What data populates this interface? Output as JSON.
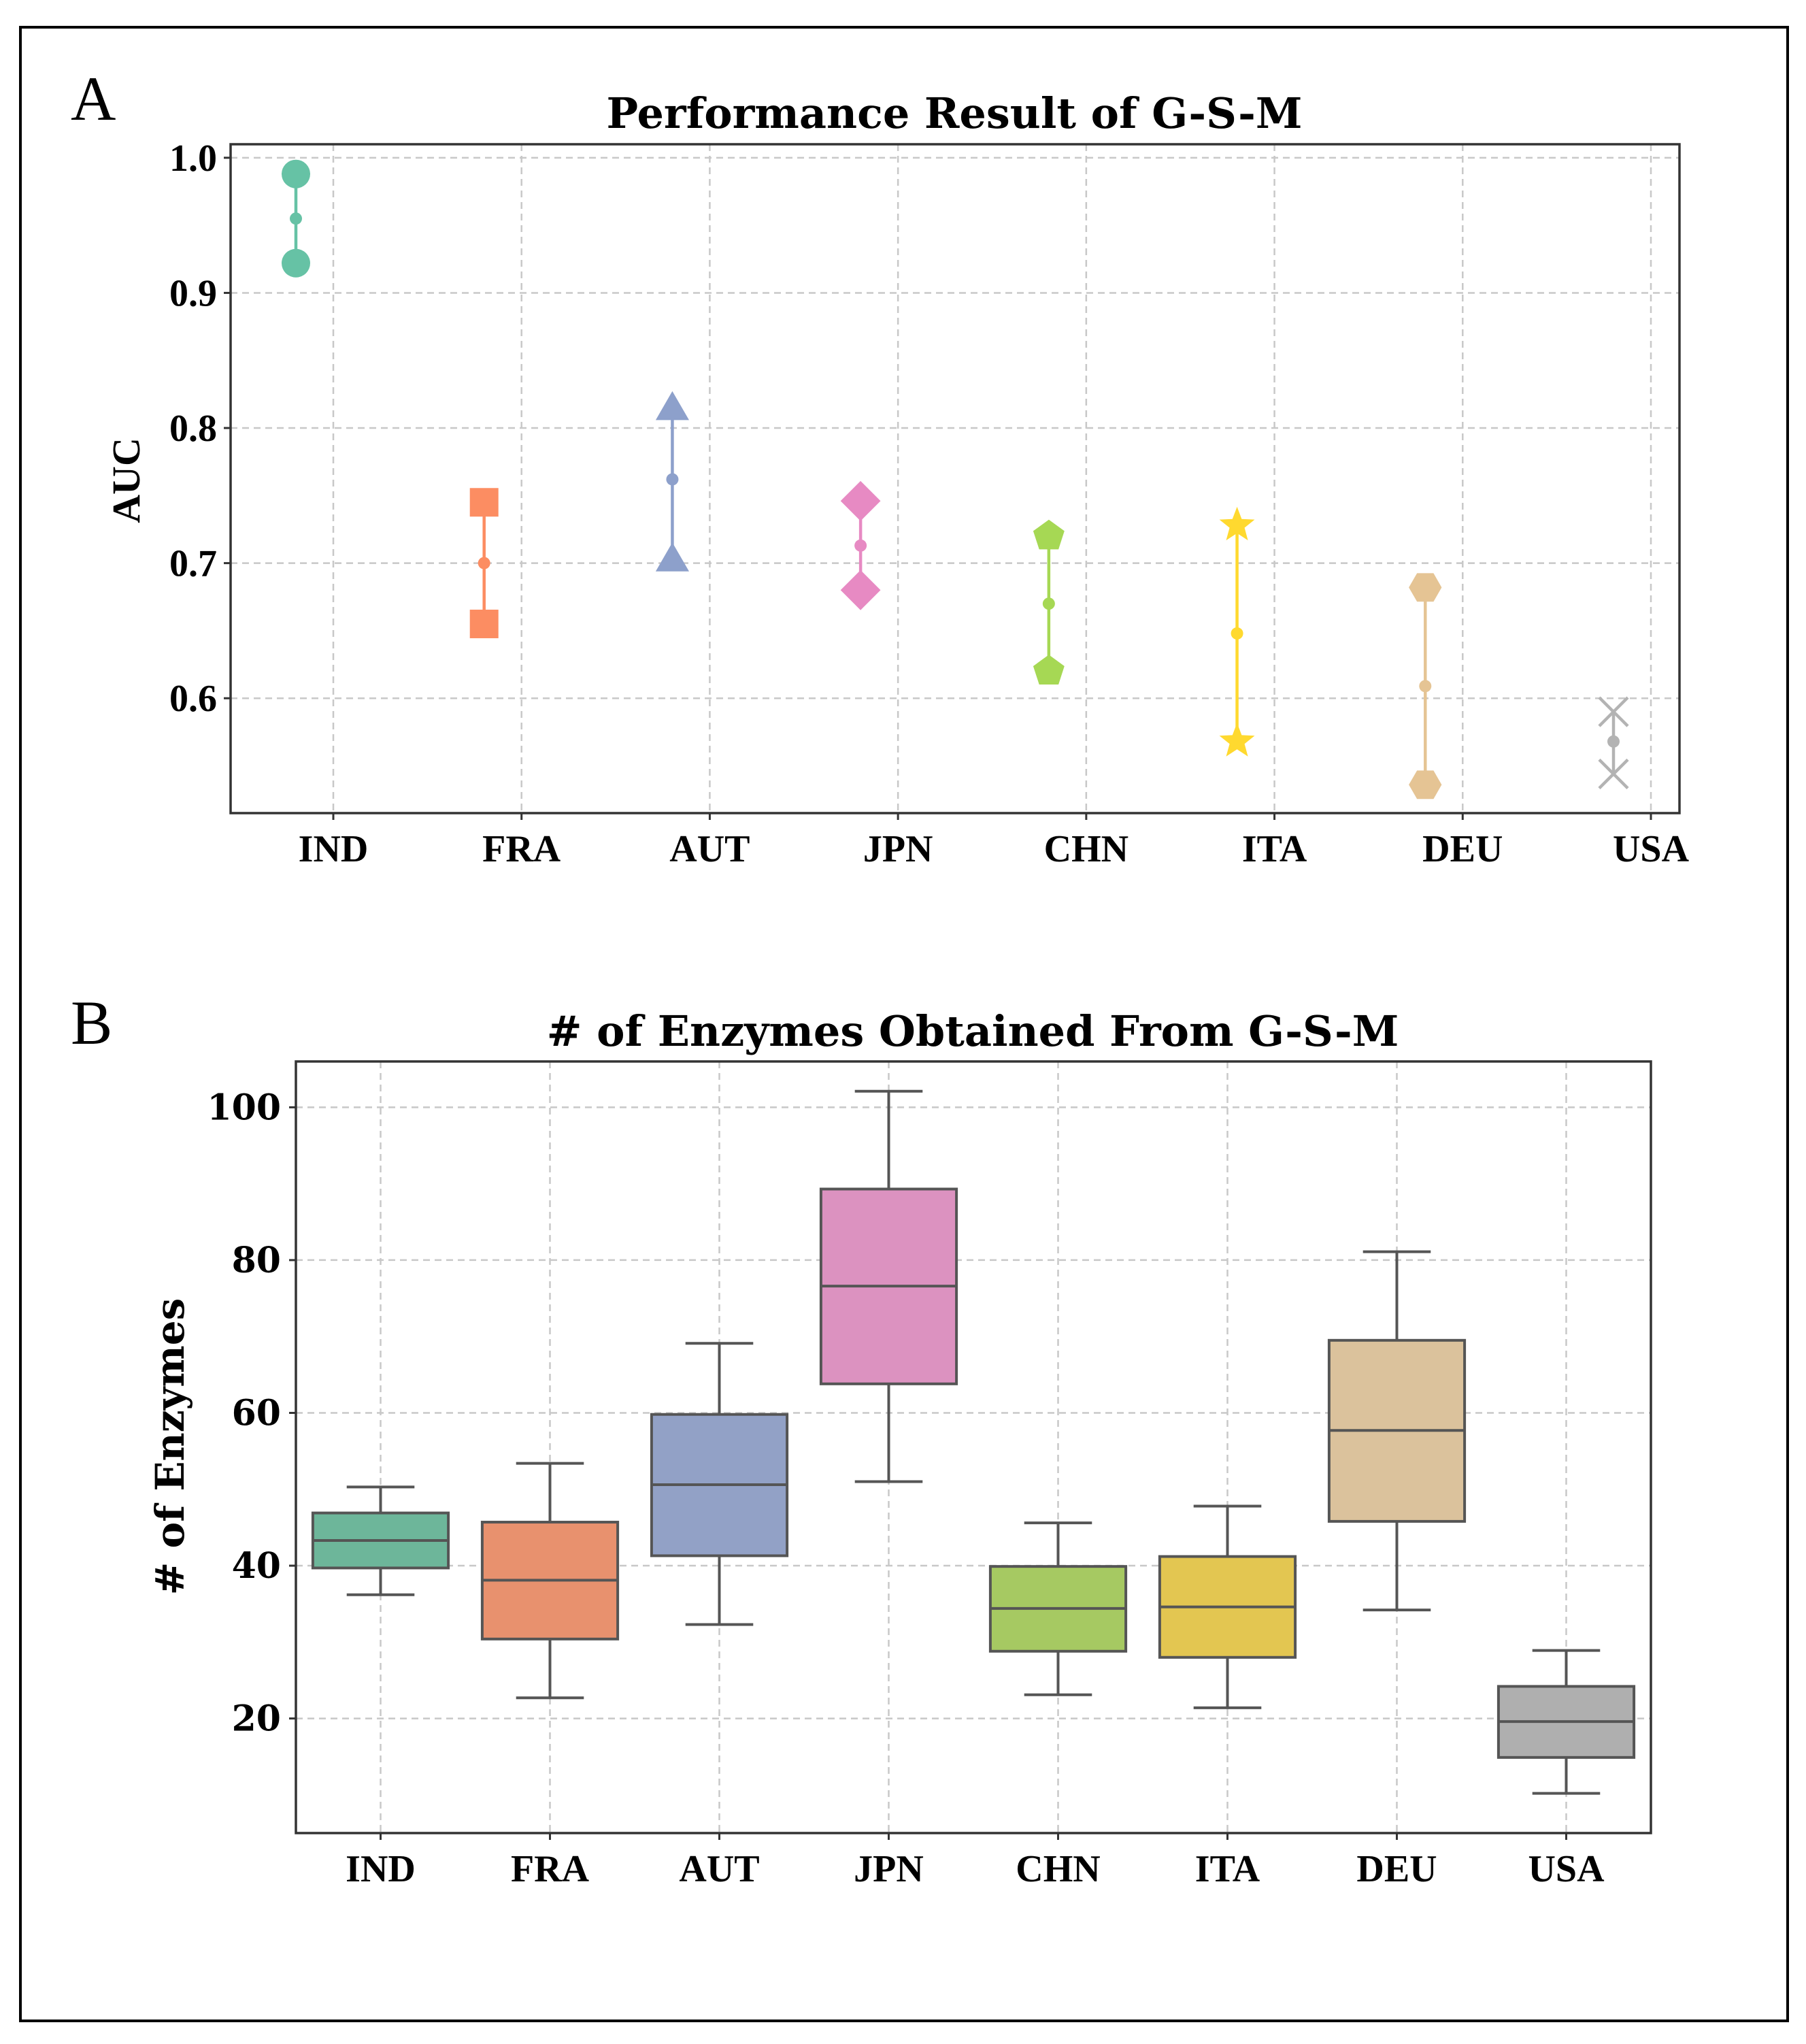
{
  "chart_data": [
    {
      "panel_label": "A",
      "type": "scatter",
      "title": "Performance Result of G-S-M",
      "xlabel": "",
      "ylabel": "AUC",
      "ylim": [
        0.515,
        1.01
      ],
      "yticks": [
        "0.6",
        "0.7",
        "0.8",
        "0.9",
        "1.0"
      ],
      "ytick_values": [
        0.6,
        0.7,
        0.8,
        0.9,
        1.0
      ],
      "grid": true,
      "categories": [
        "IND",
        "FRA",
        "AUT",
        "JPN",
        "CHN",
        "ITA",
        "DEU",
        "USA"
      ],
      "series": [
        {
          "category": "IND",
          "low": 0.922,
          "mean": 0.955,
          "high": 0.988,
          "marker": "circle",
          "color": "#66c2a5"
        },
        {
          "category": "FRA",
          "low": 0.655,
          "mean": 0.7,
          "high": 0.745,
          "marker": "square",
          "color": "#fc8d62"
        },
        {
          "category": "AUT",
          "low": 0.703,
          "mean": 0.762,
          "high": 0.815,
          "marker": "triangle",
          "color": "#8da0cb"
        },
        {
          "category": "JPN",
          "low": 0.68,
          "mean": 0.713,
          "high": 0.746,
          "marker": "diamond",
          "color": "#e78ac3"
        },
        {
          "category": "CHN",
          "low": 0.62,
          "mean": 0.67,
          "high": 0.72,
          "marker": "pentagon",
          "color": "#a6d854"
        },
        {
          "category": "ITA",
          "low": 0.568,
          "mean": 0.648,
          "high": 0.728,
          "marker": "star",
          "color": "#ffd92f"
        },
        {
          "category": "DEU",
          "low": 0.536,
          "mean": 0.609,
          "high": 0.682,
          "marker": "hexagon",
          "color": "#e5c494"
        },
        {
          "category": "USA",
          "low": 0.544,
          "mean": 0.568,
          "high": 0.59,
          "marker": "x",
          "color": "#b3b3b3"
        }
      ]
    },
    {
      "panel_label": "B",
      "type": "box",
      "title": "# of Enzymes Obtained From G-S-M",
      "xlabel": "",
      "ylabel": "# of Enzymes",
      "ylim": [
        5,
        106
      ],
      "yticks": [
        "20",
        "40",
        "60",
        "80",
        "100"
      ],
      "ytick_values": [
        20,
        40,
        60,
        80,
        100
      ],
      "grid": true,
      "categories": [
        "IND",
        "FRA",
        "AUT",
        "JPN",
        "CHN",
        "ITA",
        "DEU",
        "USA"
      ],
      "boxes": [
        {
          "category": "IND",
          "whisker_low": 36.2,
          "q1": 39.7,
          "median": 43.3,
          "q3": 46.9,
          "whisker_high": 50.3,
          "color": "#6db69a"
        },
        {
          "category": "FRA",
          "whisker_low": 22.7,
          "q1": 30.4,
          "median": 38.1,
          "q3": 45.7,
          "whisker_high": 53.4,
          "color": "#e8916e"
        },
        {
          "category": "AUT",
          "whisker_low": 32.3,
          "q1": 41.3,
          "median": 50.6,
          "q3": 59.8,
          "whisker_high": 69.1,
          "color": "#92a1c6"
        },
        {
          "category": "JPN",
          "whisker_low": 51.0,
          "q1": 63.8,
          "median": 76.6,
          "q3": 89.3,
          "whisker_high": 102.1,
          "color": "#dc92c0"
        },
        {
          "category": "CHN",
          "whisker_low": 23.1,
          "q1": 28.8,
          "median": 34.4,
          "q3": 39.9,
          "whisker_high": 45.6,
          "color": "#a6c962"
        },
        {
          "category": "ITA",
          "whisker_low": 21.4,
          "q1": 28.0,
          "median": 34.6,
          "q3": 41.2,
          "whisker_high": 47.8,
          "color": "#e3c651"
        },
        {
          "category": "DEU",
          "whisker_low": 34.2,
          "q1": 45.8,
          "median": 57.7,
          "q3": 69.5,
          "whisker_high": 81.1,
          "color": "#dbc29c"
        },
        {
          "category": "USA",
          "whisker_low": 10.2,
          "q1": 14.9,
          "median": 19.6,
          "q3": 24.2,
          "whisker_high": 28.9,
          "color": "#afafaf"
        }
      ]
    }
  ]
}
